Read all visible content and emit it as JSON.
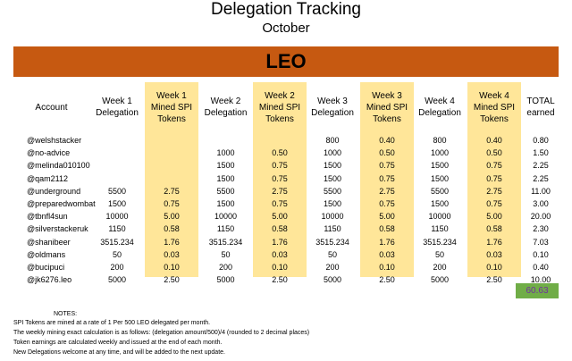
{
  "title": "Delegation Tracking",
  "subtitle": "October",
  "banner": "LEO",
  "headers": [
    "Account",
    "Week 1 Delegation",
    "Week 1 Mined SPI Tokens",
    "Week 2 Delegation",
    "Week 2 Mined SPI Tokens",
    "Week 3 Delegation",
    "Week 3 Mined SPI Tokens",
    "Week 4 Delegation",
    "Week 4 Mined SPI Tokens",
    "TOTAL earned"
  ],
  "rows": [
    [
      "@welshstacker",
      "",
      "",
      "",
      "",
      "800",
      "0.40",
      "800",
      "0.40",
      "0.80"
    ],
    [
      "@no-advice",
      "",
      "",
      "1000",
      "0.50",
      "1000",
      "0.50",
      "1000",
      "0.50",
      "1.50"
    ],
    [
      "@melinda010100",
      "",
      "",
      "1500",
      "0.75",
      "1500",
      "0.75",
      "1500",
      "0.75",
      "2.25"
    ],
    [
      "@qam2112",
      "",
      "",
      "1500",
      "0.75",
      "1500",
      "0.75",
      "1500",
      "0.75",
      "2.25"
    ],
    [
      "@underground",
      "5500",
      "2.75",
      "5500",
      "2.75",
      "5500",
      "2.75",
      "5500",
      "2.75",
      "11.00"
    ],
    [
      "@preparedwombat",
      "1500",
      "0.75",
      "1500",
      "0.75",
      "1500",
      "0.75",
      "1500",
      "0.75",
      "3.00"
    ],
    [
      "@tbnfl4sun",
      "10000",
      "5.00",
      "10000",
      "5.00",
      "10000",
      "5.00",
      "10000",
      "5.00",
      "20.00"
    ],
    [
      "@silverstackeruk",
      "1150",
      "0.58",
      "1150",
      "0.58",
      "1150",
      "0.58",
      "1150",
      "0.58",
      "2.30"
    ],
    [
      "@shanibeer",
      "3515.234",
      "1.76",
      "3515.234",
      "1.76",
      "3515.234",
      "1.76",
      "3515.234",
      "1.76",
      "7.03"
    ],
    [
      "@oldmans",
      "50",
      "0.03",
      "50",
      "0.03",
      "50",
      "0.03",
      "50",
      "0.03",
      "0.10"
    ],
    [
      "@bucipuci",
      "200",
      "0.10",
      "200",
      "0.10",
      "200",
      "0.10",
      "200",
      "0.10",
      "0.40"
    ],
    [
      "@jk6276.leo",
      "5000",
      "2.50",
      "5000",
      "2.50",
      "5000",
      "2.50",
      "5000",
      "2.50",
      "10.00"
    ]
  ],
  "grand_total": "60.63",
  "notes": {
    "heading": "NOTES:",
    "lines": [
      "SPI Tokens are mined at a rate of 1 Per 500 LEO delegated per month.",
      "The weekly mining exact calculation is as follows:   (delegation amount/500)/4 (rounded to 2 decimal places)",
      "Token earnings are calculated weekly and issued at the end of each month.",
      "New Delegations welcome at any time, and will be added to the next update."
    ]
  },
  "colors": {
    "banner": "#c65911",
    "mined_column": "#ffe699",
    "total_box": "#70ad47",
    "total_text": "#7030a0"
  }
}
